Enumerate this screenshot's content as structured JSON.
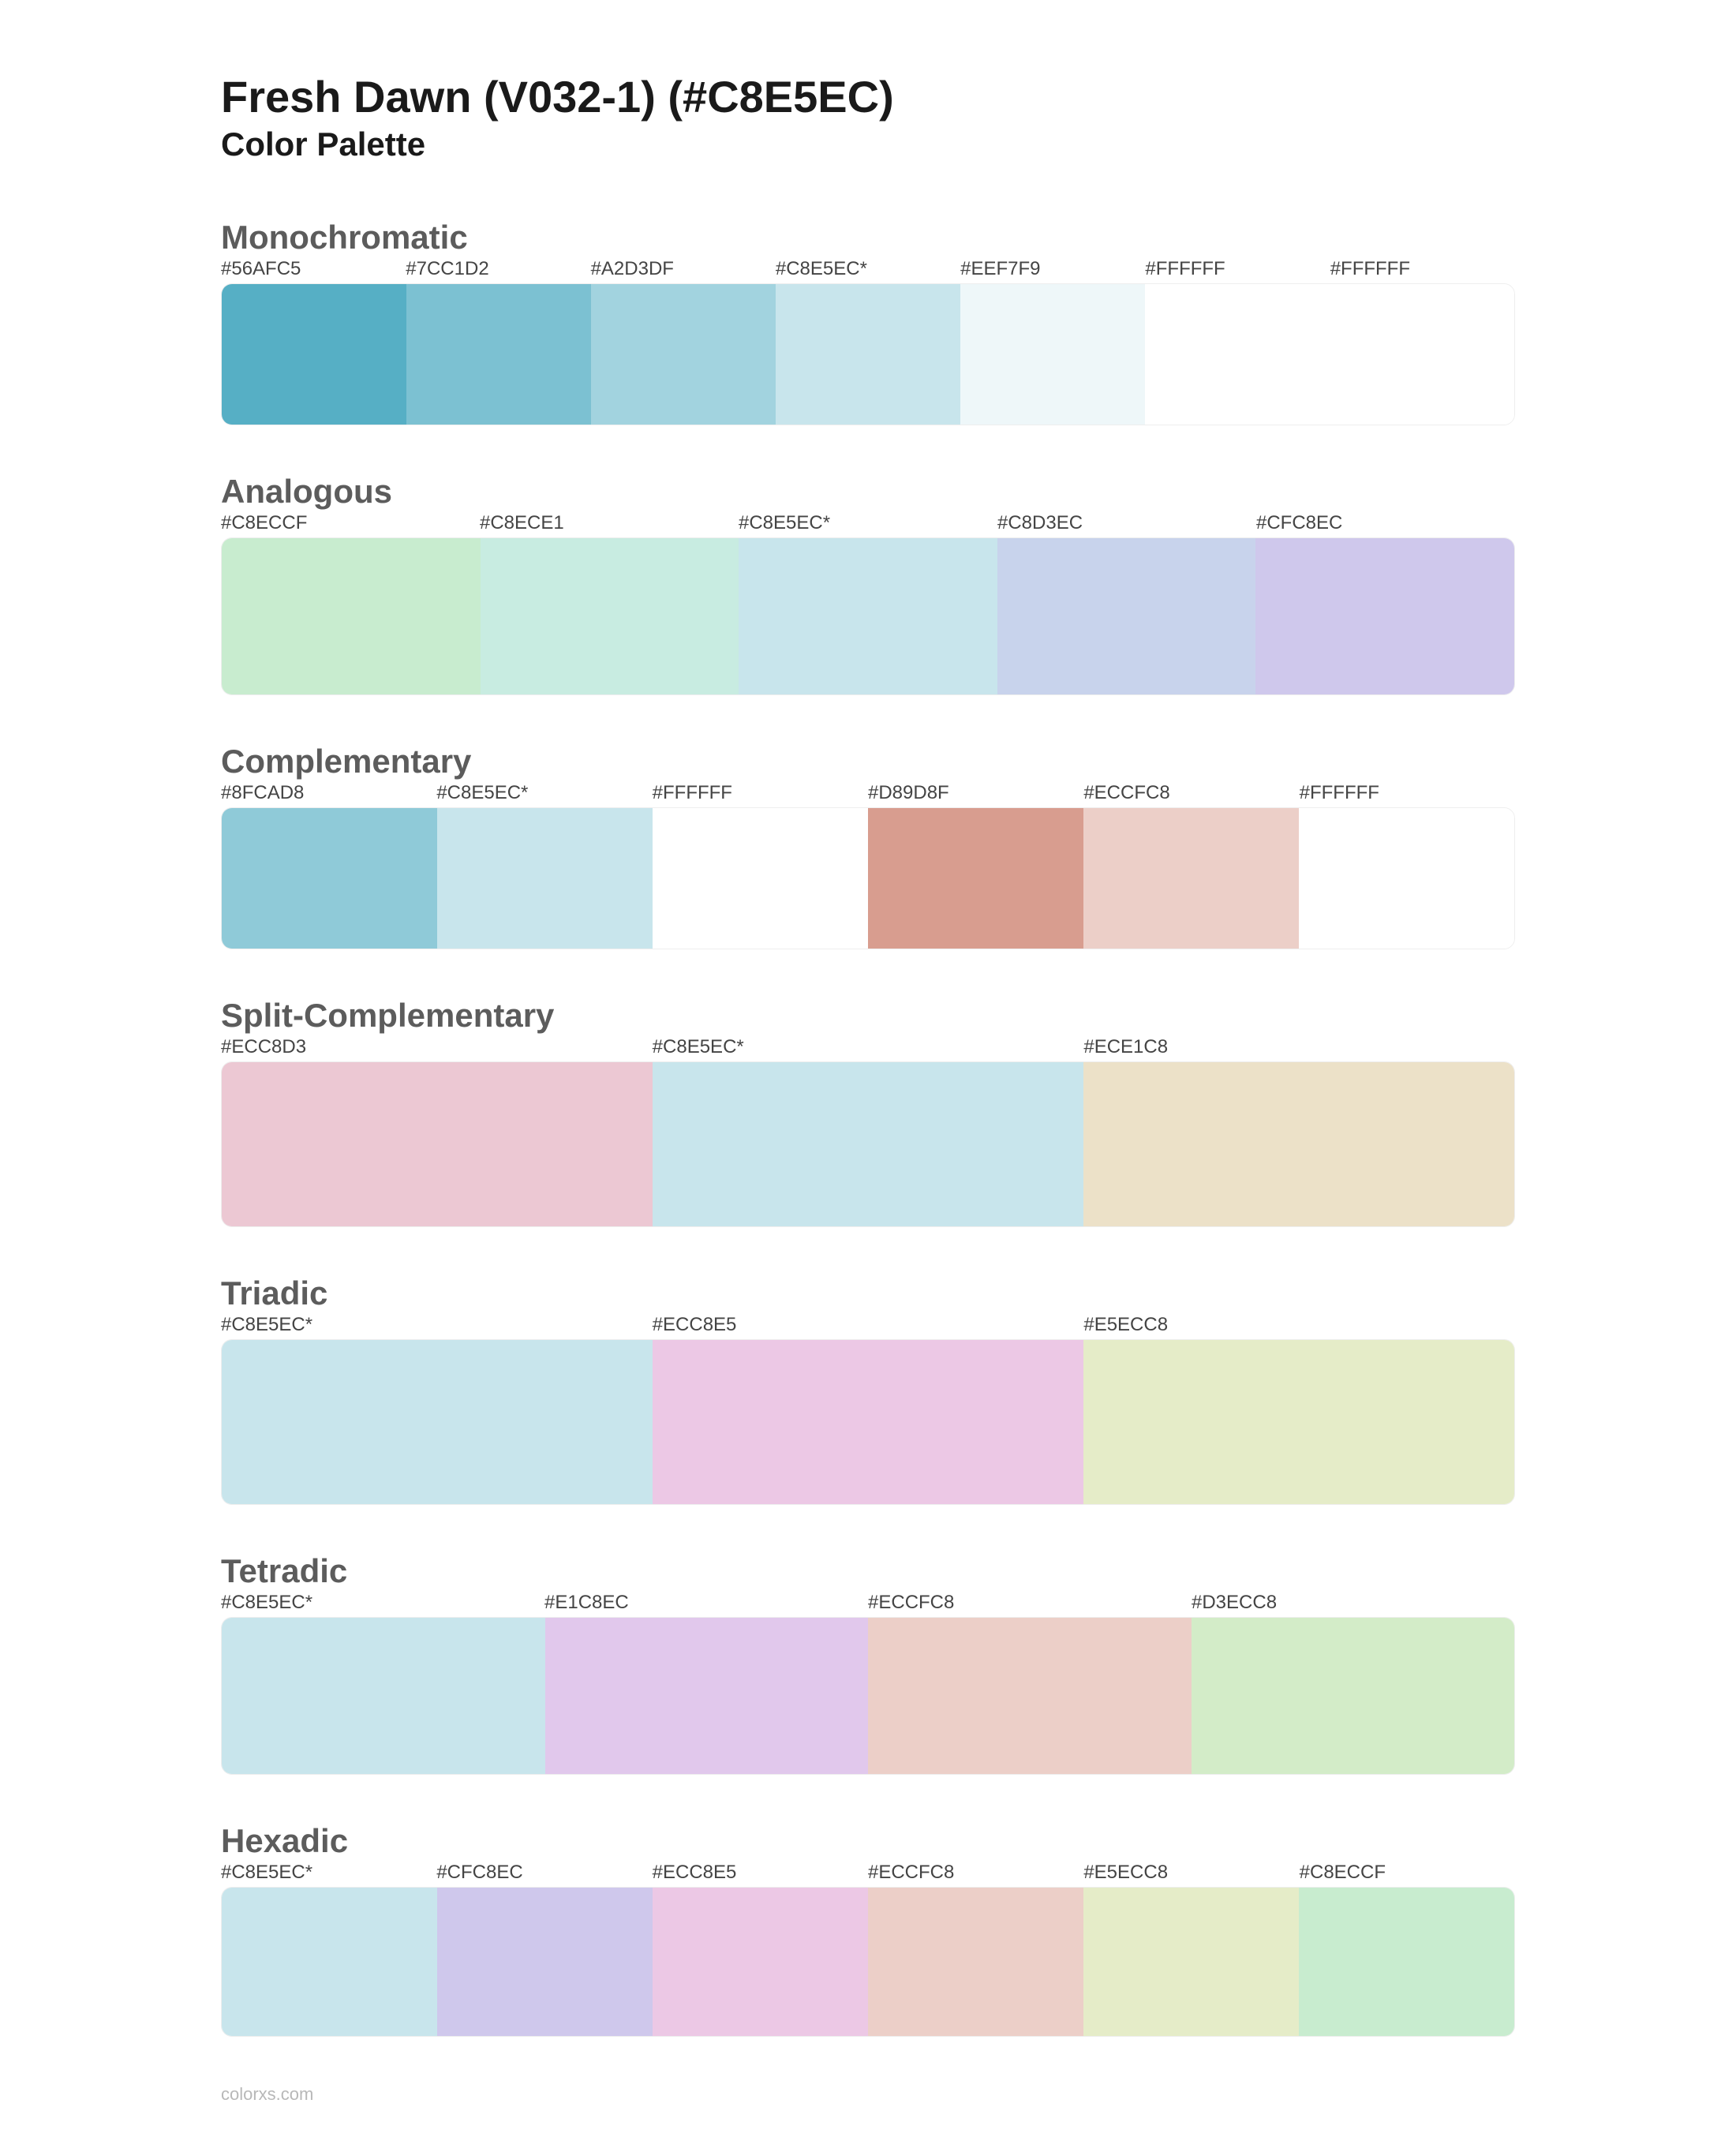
{
  "header": {
    "title": "Fresh Dawn (V032-1) (#C8E5EC)",
    "subtitle": "Color Palette"
  },
  "sections": [
    {
      "title": "Monochromatic",
      "swatch_height": 180,
      "swatches": [
        {
          "label": "#56AFC5",
          "color": "#56AFC5"
        },
        {
          "label": "#7CC1D2",
          "color": "#7CC1D2"
        },
        {
          "label": "#A2D3DF",
          "color": "#A2D3DF"
        },
        {
          "label": "#C8E5EC*",
          "color": "#C8E5EC"
        },
        {
          "label": "#EEF7F9",
          "color": "#EEF7F9"
        },
        {
          "label": "#FFFFFF",
          "color": "#FFFFFF"
        },
        {
          "label": "#FFFFFF",
          "color": "#FFFFFF"
        }
      ]
    },
    {
      "title": "Analogous",
      "swatch_height": 200,
      "swatches": [
        {
          "label": "#C8ECCF",
          "color": "#C8ECCF"
        },
        {
          "label": "#C8ECE1",
          "color": "#C8ECE1"
        },
        {
          "label": "#C8E5EC*",
          "color": "#C8E5EC"
        },
        {
          "label": "#C8D3EC",
          "color": "#C8D3EC"
        },
        {
          "label": "#CFC8EC",
          "color": "#CFC8EC"
        }
      ]
    },
    {
      "title": "Complementary",
      "swatch_height": 180,
      "swatches": [
        {
          "label": "#8FCAD8",
          "color": "#8FCAD8"
        },
        {
          "label": "#C8E5EC*",
          "color": "#C8E5EC"
        },
        {
          "label": "#FFFFFF",
          "color": "#FFFFFF"
        },
        {
          "label": "#D89D8F",
          "color": "#D89D8F"
        },
        {
          "label": "#ECCFC8",
          "color": "#ECCFC8"
        },
        {
          "label": "#FFFFFF",
          "color": "#FFFFFF"
        }
      ]
    },
    {
      "title": "Split-Complementary",
      "swatch_height": 210,
      "swatches": [
        {
          "label": "#ECC8D3",
          "color": "#ECC8D3"
        },
        {
          "label": "#C8E5EC*",
          "color": "#C8E5EC"
        },
        {
          "label": "#ECE1C8",
          "color": "#ECE1C8"
        }
      ]
    },
    {
      "title": "Triadic",
      "swatch_height": 210,
      "swatches": [
        {
          "label": "#C8E5EC*",
          "color": "#C8E5EC"
        },
        {
          "label": "#ECC8E5",
          "color": "#ECC8E5"
        },
        {
          "label": "#E5ECC8",
          "color": "#E5ECC8"
        }
      ]
    },
    {
      "title": "Tetradic",
      "swatch_height": 200,
      "swatches": [
        {
          "label": "#C8E5EC*",
          "color": "#C8E5EC"
        },
        {
          "label": "#E1C8EC",
          "color": "#E1C8EC"
        },
        {
          "label": "#ECCFC8",
          "color": "#ECCFC8"
        },
        {
          "label": "#D3ECC8",
          "color": "#D3ECC8"
        }
      ]
    },
    {
      "title": "Hexadic",
      "swatch_height": 190,
      "swatches": [
        {
          "label": "#C8E5EC*",
          "color": "#C8E5EC"
        },
        {
          "label": "#CFC8EC",
          "color": "#CFC8EC"
        },
        {
          "label": "#ECC8E5",
          "color": "#ECC8E5"
        },
        {
          "label": "#ECCFC8",
          "color": "#ECCFC8"
        },
        {
          "label": "#E5ECC8",
          "color": "#E5ECC8"
        },
        {
          "label": "#C8ECCF",
          "color": "#C8ECCF"
        }
      ]
    }
  ],
  "footer": {
    "text": "colorxs.com"
  },
  "styling": {
    "page_background": "#ffffff",
    "title_color": "#1a1a1a",
    "title_fontsize": 56,
    "subtitle_fontsize": 42,
    "section_title_color": "#5c5c5c",
    "section_title_fontsize": 42,
    "label_color": "#444444",
    "label_fontsize": 24,
    "swatch_row_border_color": "#eeeeee",
    "swatch_row_border_radius": 14,
    "footer_color": "#b8b8b8",
    "footer_fontsize": 22
  }
}
